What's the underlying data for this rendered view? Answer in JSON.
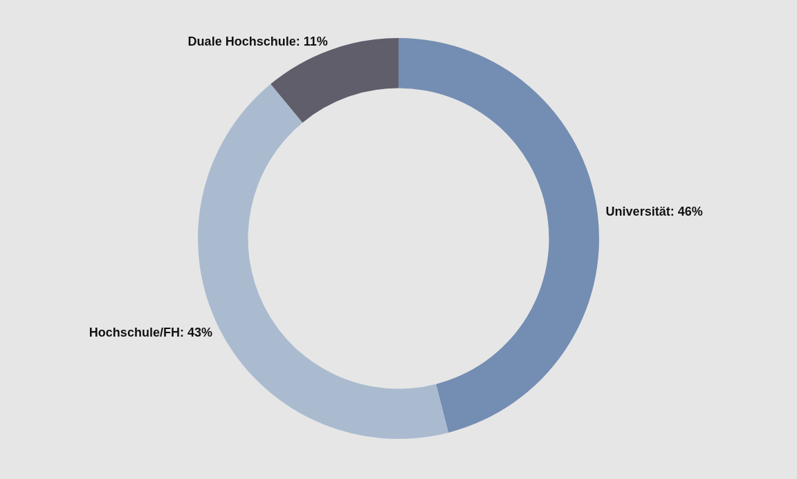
{
  "chart_data": {
    "type": "donut",
    "categories": [
      "Universität",
      "Hochschule/FH",
      "Duale Hochschule"
    ],
    "values": [
      46,
      43,
      11
    ],
    "value_labels": [
      "46%",
      "43%",
      "11%"
    ],
    "colors": [
      "#748db2",
      "#aabbd0",
      "#605e6b"
    ],
    "legend": false
  }
}
